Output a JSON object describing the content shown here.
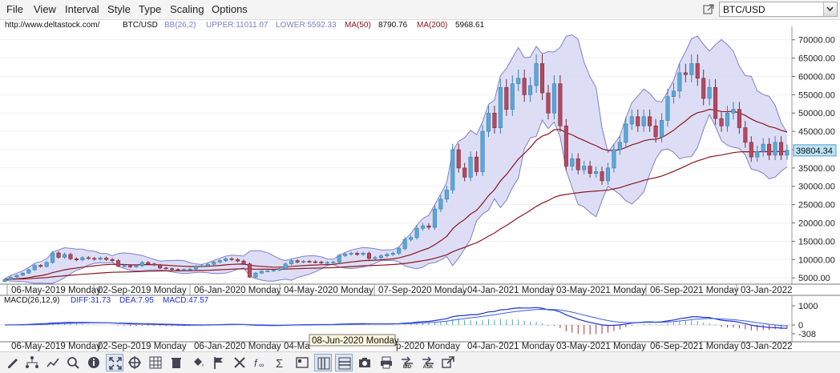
{
  "menu": {
    "items": [
      "File",
      "View",
      "Interval",
      "Style",
      "Type",
      "Scaling",
      "Options"
    ]
  },
  "symbol_selector": {
    "value": "BTC/USD"
  },
  "info": {
    "url": "http://www.deltastock.com/",
    "symbol": "BTC/USD",
    "bb_label": "BB(26,2)",
    "upper": "UPPER:11011.07",
    "lower": "LOWER:5592.33",
    "ma50_label": "MA(50)",
    "ma50_value": "8790.76",
    "ma200_label": "MA(200)",
    "ma200_value": "5968.61"
  },
  "colors": {
    "band_fill": "#d7d8f3",
    "band_line": "#7d7fc8",
    "bull": "#5aa8d8",
    "bear": "#b44a62",
    "ma50": "#8b1520",
    "ma200": "#8b1520",
    "macd_diff": "#1f2fd0",
    "macd_hist_pos": "#4aa8a0",
    "macd_hist_neg": "#b0303a"
  },
  "chart_data": [
    {
      "type": "candlestick",
      "title": "BTC/USD",
      "ylim": [
        3500,
        73000
      ],
      "y_ticks": [
        "70000.00",
        "65000.00",
        "60000.00",
        "55000.00",
        "50000.00",
        "45000.00",
        "40000.00",
        "35000.00",
        "30000.00",
        "25000.00",
        "20000.00",
        "15000.00",
        "10000.00",
        "5000.00"
      ],
      "x_ticks": [
        "06-May-2019 Monday",
        "02-Sep-2019 Monday",
        "06-Jan-2020 Monday",
        "04-May-2020 Monday",
        "07-Sep-2020 Monday",
        "04-Jan-2021 Monday",
        "03-May-2021 Monday",
        "06-Sep-2021 Monday",
        "03-Jan-2022"
      ],
      "last_price": "39804.34",
      "candles": [
        [
          4000,
          4600
        ],
        [
          4600,
          5200
        ],
        [
          5200,
          5700
        ],
        [
          5700,
          6300
        ],
        [
          6300,
          7200
        ],
        [
          7200,
          8400
        ],
        [
          8400,
          8100
        ],
        [
          8100,
          9200
        ],
        [
          9200,
          11800
        ],
        [
          11800,
          10600
        ],
        [
          10600,
          11400
        ],
        [
          11400,
          10200
        ],
        [
          10200,
          9900
        ],
        [
          9900,
          10500
        ],
        [
          10500,
          10300
        ],
        [
          10300,
          10100
        ],
        [
          10100,
          10400
        ],
        [
          10400,
          10000
        ],
        [
          10000,
          9700
        ],
        [
          9700,
          8200
        ],
        [
          8200,
          8300
        ],
        [
          8300,
          8000
        ],
        [
          8000,
          8300
        ],
        [
          8300,
          9200
        ],
        [
          9200,
          8800
        ],
        [
          8800,
          8500
        ],
        [
          8500,
          7700
        ],
        [
          7700,
          7500
        ],
        [
          7500,
          7300
        ],
        [
          7300,
          7200
        ],
        [
          7200,
          7300
        ],
        [
          7300,
          7400
        ],
        [
          7400,
          8100
        ],
        [
          8100,
          8300
        ],
        [
          8300,
          8700
        ],
        [
          8700,
          9300
        ],
        [
          9300,
          9700
        ],
        [
          9700,
          10200
        ],
        [
          10200,
          10000
        ],
        [
          10000,
          9600
        ],
        [
          9600,
          8800
        ],
        [
          8800,
          5200
        ],
        [
          5200,
          6300
        ],
        [
          6300,
          6800
        ],
        [
          6800,
          6900
        ],
        [
          6900,
          7100
        ],
        [
          7100,
          7500
        ],
        [
          7500,
          8800
        ],
        [
          8800,
          9700
        ],
        [
          9700,
          9300
        ],
        [
          9300,
          9500
        ],
        [
          9500,
          9400
        ],
        [
          9400,
          9300
        ],
        [
          9300,
          9100
        ],
        [
          9100,
          9200
        ],
        [
          9200,
          9300
        ],
        [
          9300,
          11100
        ],
        [
          11100,
          11500
        ],
        [
          11500,
          11700
        ],
        [
          11700,
          11400
        ],
        [
          11400,
          11700
        ],
        [
          11700,
          10300
        ],
        [
          10300,
          10500
        ],
        [
          10500,
          11000
        ],
        [
          11000,
          11400
        ],
        [
          11400,
          11700
        ],
        [
          11700,
          13000
        ],
        [
          13000,
          15500
        ],
        [
          15500,
          16000
        ],
        [
          16000,
          18500
        ],
        [
          18500,
          19200
        ],
        [
          19200,
          18800
        ],
        [
          18800,
          23800
        ],
        [
          23800,
          26500
        ],
        [
          26500,
          29000
        ],
        [
          29000,
          40000
        ],
        [
          40000,
          35000
        ],
        [
          35000,
          32500
        ],
        [
          32500,
          38000
        ],
        [
          38000,
          34000
        ],
        [
          34000,
          45000
        ],
        [
          45000,
          50000
        ],
        [
          50000,
          46000
        ],
        [
          46000,
          57000
        ],
        [
          57000,
          51000
        ],
        [
          51000,
          58000
        ],
        [
          58000,
          59500
        ],
        [
          59500,
          55000
        ],
        [
          55000,
          57500
        ],
        [
          57500,
          63500
        ],
        [
          63500,
          55500
        ],
        [
          55500,
          50000
        ],
        [
          50000,
          58000
        ],
        [
          58000,
          46500
        ],
        [
          46500,
          35500
        ],
        [
          35500,
          37500
        ],
        [
          37500,
          34500
        ],
        [
          34500,
          35500
        ],
        [
          35500,
          33500
        ],
        [
          33500,
          34000
        ],
        [
          34000,
          31500
        ],
        [
          31500,
          35000
        ],
        [
          35000,
          40000
        ],
        [
          40000,
          42000
        ],
        [
          42000,
          47000
        ],
        [
          47000,
          49000
        ],
        [
          49000,
          46500
        ],
        [
          46500,
          49000
        ],
        [
          49000,
          46500
        ],
        [
          46500,
          43500
        ],
        [
          43500,
          48000
        ],
        [
          48000,
          54500
        ],
        [
          54500,
          56000
        ],
        [
          56000,
          61000
        ],
        [
          61000,
          60500
        ],
        [
          60500,
          63500
        ],
        [
          63500,
          59500
        ],
        [
          59500,
          54000
        ],
        [
          54000,
          57000
        ],
        [
          57000,
          48500
        ],
        [
          48500,
          46500
        ],
        [
          46500,
          50000
        ],
        [
          50000,
          51000
        ],
        [
          51000,
          46000
        ],
        [
          46000,
          42000
        ],
        [
          42000,
          38000
        ],
        [
          38000,
          39500
        ],
        [
          39500,
          41500
        ],
        [
          41500,
          38500
        ],
        [
          38500,
          42000
        ],
        [
          42000,
          38500
        ],
        [
          38500,
          39800
        ]
      ]
    },
    {
      "type": "macd",
      "title": "MACD(26,12,9)",
      "diff": "DIFF:31.73",
      "dea": "DEA:7.95",
      "macd": "MACD:47.57",
      "y_ticks": [
        "1000",
        "0",
        "-308"
      ]
    }
  ],
  "macd_xaxis": {
    "ticks": [
      "06-May-2019 Monday",
      "02-Sep-2019 Monday",
      "06-Jan-2020 Monday",
      "04-Ma",
      "p-2020 Monday",
      "04-Jan-2021 Monday",
      "03-May-2021 Monday",
      "06-Sep-2021 Monday",
      "03-Jan-2022"
    ],
    "hover_label": "08-Jun-2020 Monday"
  },
  "toolbar": {
    "icons": [
      "pencil-icon",
      "network-icon",
      "line-chart-icon",
      "zoom-icon",
      "info-icon",
      "fit-icon",
      "crosshair-icon",
      "grid-icon",
      "delete-icon",
      "fill-icon",
      "flag-icon",
      "tools-icon",
      "function-icon",
      "sigma-icon",
      "template-icon",
      "layout-vertical-icon",
      "layout-horizontal-icon",
      "camera-icon",
      "print-icon",
      "bid-icon",
      "ask-icon",
      "external-link-icon"
    ],
    "bid_label": "BID",
    "ask_label": "ASK"
  }
}
